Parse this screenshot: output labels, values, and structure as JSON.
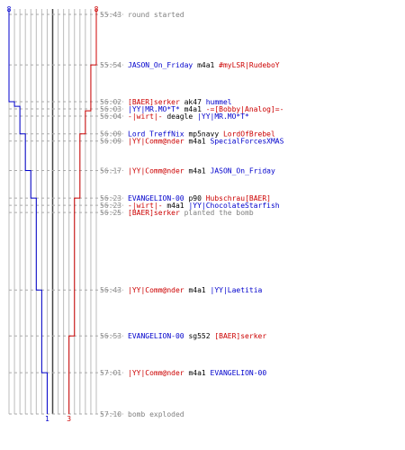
{
  "chart_data": {
    "type": "line",
    "title": "",
    "xlabel": "",
    "ylabel": "",
    "colors": {
      "blue": "#0000cc",
      "red": "#cc0000",
      "time": "#888888",
      "grid": "#bbbbbb",
      "dark": "#444444",
      "dash": "#aaaaaa"
    },
    "y_range": [
      "55:43",
      "57:10"
    ],
    "x_range": [
      0,
      8
    ],
    "series": [
      {
        "color": "blue",
        "start_alive": 8,
        "end_label": "1",
        "steps": [
          {
            "time": "56:02",
            "alive": 7
          },
          {
            "time": "56:03",
            "alive": 6
          },
          {
            "time": "56:09",
            "alive": 5
          },
          {
            "time": "56:17",
            "alive": 4
          },
          {
            "time": "56:23",
            "alive": 3
          },
          {
            "time": "56:43",
            "alive": 2
          },
          {
            "time": "57:01",
            "alive": 1
          }
        ]
      },
      {
        "color": "red",
        "start_alive": 8,
        "end_label": "3",
        "steps": [
          {
            "time": "55:54",
            "alive": 7
          },
          {
            "time": "56:04",
            "alive": 6
          },
          {
            "time": "56:09",
            "alive": 5
          },
          {
            "time": "56:23",
            "alive": 4
          },
          {
            "time": "56:53",
            "alive": 3
          }
        ]
      }
    ],
    "top_labels": {
      "left": "8",
      "right": "8"
    },
    "events": [
      {
        "time": "55:43",
        "parts": [
          {
            "t": "round started",
            "c": "grey"
          }
        ]
      },
      {
        "time": "55:54",
        "parts": [
          {
            "t": "JASON_On_Friday",
            "c": "blue"
          },
          {
            "t": " m4a1 ",
            "c": "black"
          },
          {
            "t": "#myLSR|RudeboY",
            "c": "red"
          }
        ]
      },
      {
        "time": "56:02",
        "parts": [
          {
            "t": "[BAER]serker",
            "c": "red"
          },
          {
            "t": " ak47 ",
            "c": "black"
          },
          {
            "t": "hummel",
            "c": "blue"
          }
        ]
      },
      {
        "time": "56:03",
        "parts": [
          {
            "t": "|YY|MR.MO*T*",
            "c": "blue"
          },
          {
            "t": " m4a1 ",
            "c": "black"
          },
          {
            "t": "-=[Bobby|Analog]=-",
            "c": "red"
          }
        ]
      },
      {
        "time": "56:04",
        "parts": [
          {
            "t": "-|wirt|-",
            "c": "red"
          },
          {
            "t": " deagle ",
            "c": "black"
          },
          {
            "t": "|YY|MR.MO*T*",
            "c": "blue"
          }
        ]
      },
      {
        "time": "56:09",
        "parts": [
          {
            "t": "Lord TreffNix",
            "c": "blue"
          },
          {
            "t": " mp5navy ",
            "c": "black"
          },
          {
            "t": "LordOfBrebel",
            "c": "red"
          }
        ]
      },
      {
        "time": "56:09",
        "parts": [
          {
            "t": "|YY|Comm@nder",
            "c": "red"
          },
          {
            "t": " m4a1 ",
            "c": "black"
          },
          {
            "t": "SpecialForcesXMAS",
            "c": "blue"
          }
        ]
      },
      {
        "time": "56:17",
        "parts": [
          {
            "t": "|YY|Comm@nder",
            "c": "red"
          },
          {
            "t": " m4a1 ",
            "c": "black"
          },
          {
            "t": "JASON_On_Friday",
            "c": "blue"
          }
        ]
      },
      {
        "time": "56:23",
        "parts": [
          {
            "t": "EVANGELION-00",
            "c": "blue"
          },
          {
            "t": " p90 ",
            "c": "black"
          },
          {
            "t": "Hubschrau[BAER]",
            "c": "red"
          }
        ]
      },
      {
        "time": "56:23",
        "parts": [
          {
            "t": "-|wirt|-",
            "c": "red"
          },
          {
            "t": " m4a1 ",
            "c": "black"
          },
          {
            "t": "|YY|ChocolateStarfish",
            "c": "blue"
          }
        ]
      },
      {
        "time": "56:25",
        "parts": [
          {
            "t": "[BAER]serker",
            "c": "red"
          },
          {
            "t": " planted the bomb",
            "c": "grey"
          }
        ]
      },
      {
        "time": "56:43",
        "parts": [
          {
            "t": "|YY|Comm@nder",
            "c": "red"
          },
          {
            "t": " m4a1 ",
            "c": "black"
          },
          {
            "t": "|YY|Laetitia",
            "c": "blue"
          }
        ]
      },
      {
        "time": "56:53",
        "parts": [
          {
            "t": "EVANGELION-00",
            "c": "blue"
          },
          {
            "t": " sg552 ",
            "c": "black"
          },
          {
            "t": "[BAER]serker",
            "c": "red"
          }
        ]
      },
      {
        "time": "57:01",
        "parts": [
          {
            "t": "|YY|Comm@nder",
            "c": "red"
          },
          {
            "t": " m4a1 ",
            "c": "black"
          },
          {
            "t": "EVANGELION-00",
            "c": "blue"
          }
        ]
      },
      {
        "time": "57:10",
        "parts": [
          {
            "t": "bomb exploded",
            "c": "grey"
          }
        ]
      }
    ]
  }
}
